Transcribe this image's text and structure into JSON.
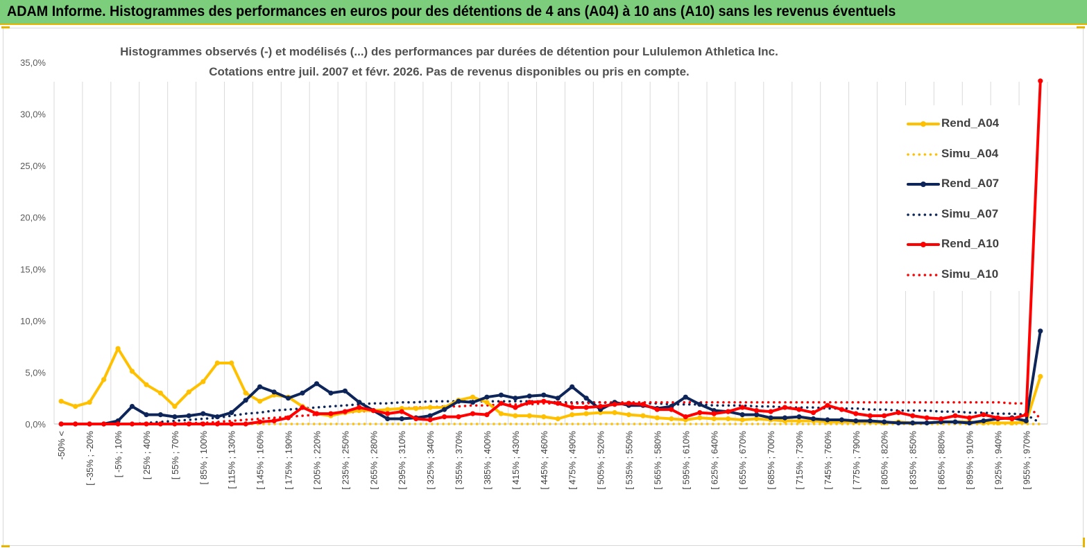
{
  "header": {
    "title": "ADAM Informe. Histogrammes des performances en euros pour des détentions de 4 ans (A04) à 10 ans (A10) sans les revenus éventuels"
  },
  "chart_data": {
    "type": "line",
    "title_line1": "Histogrammes observés (-) et modélisés (...) des performances par durées de détention pour Lululemon Athletica Inc.",
    "title_line2": "Cotations entre juil. 2007 et févr. 2026.  Pas de revenus disponibles ou pris en compte.",
    "xlabel": "",
    "ylabel": "",
    "ylim": [
      0,
      35
    ],
    "yticks": [
      "0,0%",
      "5,0%",
      "10,0%",
      "15,0%",
      "20,0%",
      "25,0%",
      "30,0%",
      "35,0%"
    ],
    "xtick_labels": [
      "-50% <",
      "[ -35% ; -20%",
      "[ -5% ; 10%",
      "[ 25% ; 40%",
      "[ 55% ; 70%",
      "[ 85% ; 100%",
      "[ 115% ; 130%",
      "[ 145% ; 160%",
      "[ 175% ; 190%",
      "[ 205% ; 220%",
      "[ 235% ; 250%",
      "[ 265% ; 280%",
      "[ 295% ; 310%",
      "[ 325% ; 340%",
      "[ 355% ; 370%",
      "[ 385% ; 400%",
      "[ 415% ; 430%",
      "[ 445% ; 460%",
      "[ 475% ; 490%",
      "[ 505% ; 520%",
      "[ 535% ; 550%",
      "[ 565% ; 580%",
      "[ 595% ; 610%",
      "[ 625% ; 640%",
      "[ 655% ; 670%",
      "[ 685% ; 700%",
      "[ 715% ; 730%",
      "[ 745% ; 760%",
      "[ 775% ; 790%",
      "[ 805% ; 820%",
      "[ 835% ; 850%",
      "[ 865% ; 880%",
      "[ 895% ; 910%",
      "[ 925% ; 940%",
      "[ 955% ; 970%"
    ],
    "n_categories": 70,
    "series": [
      {
        "name": "Rend_A04",
        "color": "#ffc000",
        "style": "solid",
        "values": [
          2.2,
          1.7,
          2.1,
          4.3,
          7.3,
          5.1,
          3.8,
          3.0,
          1.7,
          3.1,
          4.1,
          5.9,
          5.9,
          3.0,
          2.2,
          2.8,
          2.6,
          1.7,
          1.0,
          0.8,
          1.1,
          1.3,
          1.3,
          1.4,
          1.5,
          1.5,
          1.6,
          1.6,
          2.3,
          2.6,
          2.1,
          1.0,
          0.8,
          0.8,
          0.7,
          0.5,
          0.9,
          1.0,
          1.1,
          1.1,
          0.9,
          0.8,
          0.6,
          0.5,
          0.4,
          0.6,
          0.5,
          0.5,
          0.4,
          0.5,
          0.4,
          0.3,
          0.3,
          0.3,
          0.2,
          0.2,
          0.2,
          0.2,
          0.1,
          0.2,
          0.1,
          0.1,
          0.2,
          0.2,
          0.2,
          0.1,
          0.1,
          0.1,
          0.2,
          4.6
        ]
      },
      {
        "name": "Simu_A04",
        "color": "#ffc000",
        "style": "dotted",
        "values": [
          0,
          0,
          0,
          0,
          0,
          0,
          0,
          0,
          0,
          0,
          0,
          0,
          0,
          0,
          0,
          0,
          0,
          0,
          0,
          0,
          0,
          0,
          0,
          0,
          0,
          0,
          0,
          0,
          0,
          0,
          0,
          0,
          0,
          0,
          0,
          0,
          0,
          0,
          0,
          0,
          0,
          0,
          0,
          0,
          0,
          0,
          0,
          0,
          0,
          0,
          0,
          0,
          0,
          0,
          0,
          0,
          0,
          0,
          0,
          0,
          0,
          0,
          0,
          0,
          0,
          0,
          0,
          0,
          0,
          0
        ]
      },
      {
        "name": "Rend_A07",
        "color": "#0d2559",
        "style": "solid",
        "values": [
          0,
          0,
          0,
          0,
          0.3,
          1.7,
          0.9,
          0.9,
          0.7,
          0.8,
          1.0,
          0.7,
          1.1,
          2.3,
          3.6,
          3.1,
          2.5,
          3.0,
          3.9,
          3.0,
          3.2,
          2.1,
          1.3,
          0.5,
          0.5,
          0.6,
          0.8,
          1.4,
          2.2,
          2.1,
          2.6,
          2.8,
          2.5,
          2.7,
          2.8,
          2.5,
          3.6,
          2.5,
          1.4,
          2.1,
          1.8,
          1.8,
          1.5,
          1.7,
          2.6,
          1.9,
          1.3,
          1.2,
          0.9,
          0.9,
          0.6,
          0.6,
          0.7,
          0.5,
          0.4,
          0.4,
          0.3,
          0.3,
          0.2,
          0.1,
          0.1,
          0.1,
          0.2,
          0.2,
          0.1,
          0.3,
          0.5,
          0.6,
          0.3,
          9.0
        ]
      },
      {
        "name": "Simu_A07",
        "color": "#0d2559",
        "style": "dotted",
        "values": [
          0,
          0,
          0,
          0,
          0,
          0,
          0.1,
          0.2,
          0.3,
          0.4,
          0.5,
          0.6,
          0.8,
          1.0,
          1.1,
          1.3,
          1.4,
          1.5,
          1.6,
          1.7,
          1.8,
          1.9,
          2.0,
          2.0,
          2.1,
          2.1,
          2.2,
          2.2,
          2.2,
          2.2,
          2.2,
          2.2,
          2.2,
          2.2,
          2.2,
          2.1,
          2.1,
          2.1,
          2.1,
          2.0,
          2.0,
          2.0,
          2.0,
          1.9,
          1.9,
          1.9,
          1.8,
          1.8,
          1.8,
          1.7,
          1.7,
          1.6,
          1.6,
          1.6,
          1.5,
          1.5,
          1.5,
          1.4,
          1.4,
          1.3,
          1.3,
          1.3,
          1.2,
          1.2,
          1.1,
          1.1,
          1.0,
          1.0,
          0.9,
          0.1
        ]
      },
      {
        "name": "Rend_A10",
        "color": "#ff0000",
        "style": "solid",
        "values": [
          0,
          0,
          0,
          0,
          0,
          0,
          0,
          0,
          0,
          0,
          0,
          0,
          0,
          0,
          0.2,
          0.3,
          0.6,
          1.6,
          1.0,
          1.0,
          1.2,
          1.6,
          1.3,
          1.0,
          1.2,
          0.5,
          0.4,
          0.7,
          0.7,
          1.0,
          0.9,
          2.0,
          1.6,
          2.1,
          2.2,
          2.0,
          1.6,
          1.6,
          1.7,
          1.9,
          2.0,
          1.9,
          1.4,
          1.4,
          0.7,
          1.1,
          1.0,
          1.2,
          1.6,
          1.3,
          1.2,
          1.6,
          1.4,
          1.1,
          1.8,
          1.4,
          1.0,
          0.8,
          0.8,
          1.1,
          0.8,
          0.6,
          0.5,
          0.8,
          0.6,
          0.9,
          0.6,
          0.5,
          0.9,
          33.2
        ]
      },
      {
        "name": "Simu_A10",
        "color": "#ff0000",
        "style": "dotted",
        "values": [
          0,
          0,
          0,
          0,
          0,
          0,
          0,
          0,
          0,
          0.1,
          0.1,
          0.2,
          0.3,
          0.4,
          0.5,
          0.6,
          0.7,
          0.8,
          0.9,
          1.0,
          1.1,
          1.2,
          1.3,
          1.4,
          1.5,
          1.6,
          1.6,
          1.7,
          1.7,
          1.8,
          1.8,
          1.9,
          1.9,
          1.9,
          2.0,
          2.0,
          2.0,
          2.0,
          2.1,
          2.1,
          2.1,
          2.1,
          2.1,
          2.1,
          2.1,
          2.1,
          2.1,
          2.1,
          2.1,
          2.1,
          2.1,
          2.1,
          2.1,
          2.1,
          2.1,
          2.1,
          2.1,
          2.1,
          2.1,
          2.1,
          2.1,
          2.1,
          2.1,
          2.1,
          2.1,
          2.1,
          2.1,
          2.0,
          2.0,
          0.5
        ]
      }
    ],
    "legend_position": "right"
  }
}
